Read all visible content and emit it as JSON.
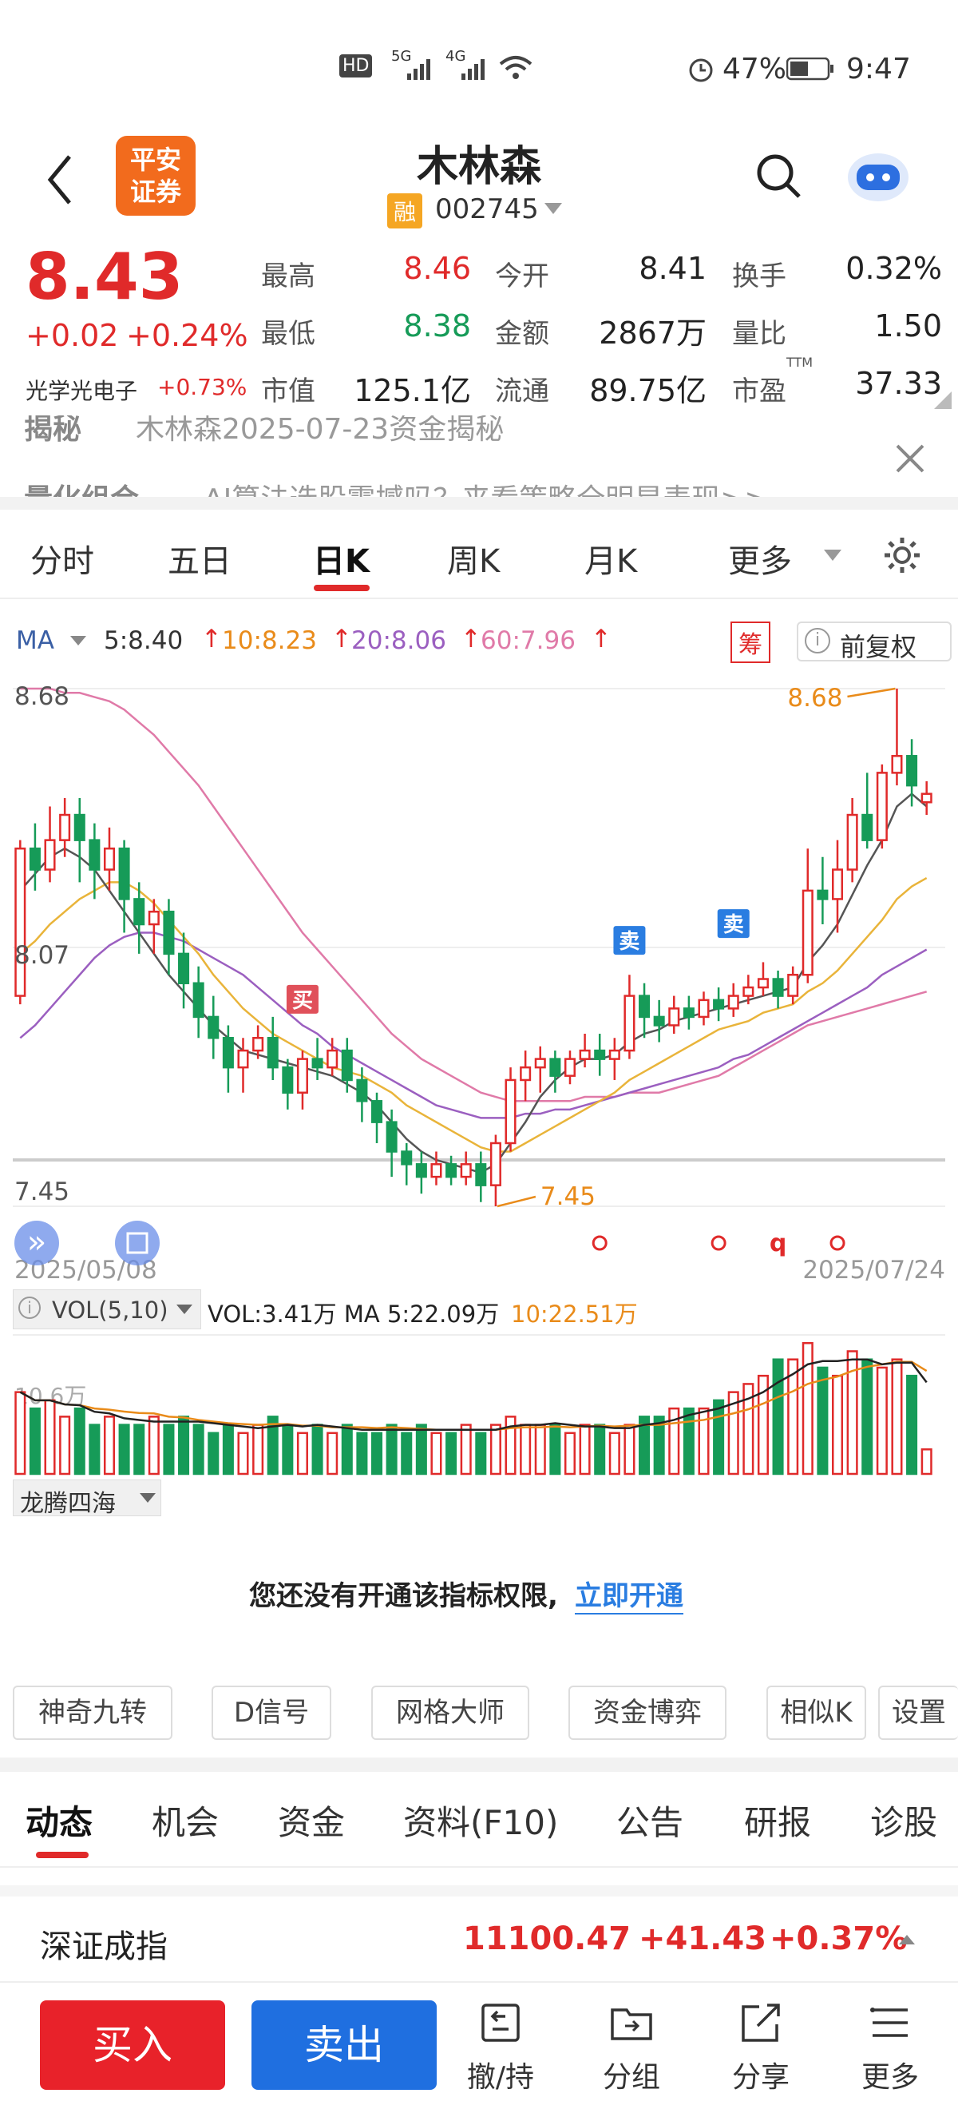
{
  "status_bar": {
    "battery": "47%",
    "time": "9:47",
    "net1": "5G",
    "net2": "4G",
    "hd": "HD"
  },
  "header": {
    "logo_line1": "平安",
    "logo_line2": "证券",
    "title": "木林森",
    "margin_badge": "融",
    "code": "002745"
  },
  "quote": {
    "price": "8.43",
    "change": "+0.02",
    "change_pct": "+0.24%",
    "sector": "光学光电子",
    "sector_pct": "+0.73%",
    "rows": [
      [
        {
          "l": "最高",
          "v": "8.46",
          "c": "red"
        },
        {
          "l": "今开",
          "v": "8.41",
          "c": "dark"
        },
        {
          "l": "换手",
          "v": "0.32%",
          "c": "dark"
        }
      ],
      [
        {
          "l": "最低",
          "v": "8.38",
          "c": "green"
        },
        {
          "l": "金额",
          "v": "2867万",
          "c": "dark"
        },
        {
          "l": "量比",
          "v": "1.50",
          "c": "dark"
        }
      ],
      [
        {
          "l": "市值",
          "v": "125.1亿",
          "c": "dark"
        },
        {
          "l": "流通",
          "v": "89.75亿",
          "c": "dark"
        },
        {
          "l": "市盈",
          "v": "37.33",
          "c": "dark",
          "sup": "TTM"
        }
      ]
    ]
  },
  "news": {
    "line1_tag": "揭秘",
    "line1_text": "木林森2025-07-23资金揭秘",
    "line2_tag": "量化组合",
    "line2_text": "AI算法选股震撼吗？来看策略全明星表现>>"
  },
  "tabs": [
    "分时",
    "五日",
    "日K",
    "周K",
    "月K",
    "更多"
  ],
  "ma": {
    "label": "MA",
    "ma5": "5:8.40",
    "ma10": "10:8.23",
    "ma20": "20:8.06",
    "ma60": "60:7.96",
    "chip": "筹",
    "adjust": "前复权"
  },
  "kline": {
    "y_top": "8.68",
    "y_mid": "8.07",
    "y_bot": "7.45",
    "date_start": "2025/05/08",
    "date_end": "2025/07/24",
    "hi_label": "8.68",
    "lo_label": "7.45",
    "buy": "买",
    "sell": "卖",
    "q": "q"
  },
  "vol": {
    "label": "VOL(5,10)",
    "text": "VOL:3.41万 MA 5:22.09万",
    "ma10": "10:22.51万",
    "left_label": "10.6万"
  },
  "indicator": {
    "name": "龙腾四海",
    "notice": "您还没有开通该指标权限,",
    "link": "立即开通"
  },
  "tools": [
    "神奇九转",
    "D信号",
    "网格大师",
    "资金博弈",
    "相似K",
    "设置"
  ],
  "feature_tabs": [
    "动态",
    "机会",
    "资金",
    "资料(F10)",
    "公告",
    "研报",
    "诊股"
  ],
  "index": {
    "name": "深证成指",
    "value": "11100.47",
    "change": "+41.43",
    "pct": "+0.37%"
  },
  "bottom": {
    "buy": "买入",
    "sell": "卖出",
    "items": [
      "撤/持",
      "分组",
      "分享",
      "更多"
    ]
  },
  "chart_data": {
    "type": "candlestick",
    "ylim": [
      7.45,
      8.68
    ],
    "date_range": [
      "2025/05/08",
      "2025/07/24"
    ],
    "candles": [
      [
        7.95,
        8.3,
        8.32,
        7.93
      ],
      [
        8.3,
        8.25,
        8.36,
        8.2
      ],
      [
        8.25,
        8.32,
        8.4,
        8.22
      ],
      [
        8.32,
        8.38,
        8.42,
        8.28
      ],
      [
        8.38,
        8.32,
        8.42,
        8.22
      ],
      [
        8.32,
        8.25,
        8.36,
        8.18
      ],
      [
        8.25,
        8.3,
        8.35,
        8.2
      ],
      [
        8.3,
        8.18,
        8.32,
        8.1
      ],
      [
        8.18,
        8.12,
        8.22,
        8.05
      ],
      [
        8.12,
        8.15,
        8.18,
        8.05
      ],
      [
        8.15,
        8.05,
        8.18,
        8.0
      ],
      [
        8.05,
        7.98,
        8.1,
        7.92
      ],
      [
        7.98,
        7.9,
        8.02,
        7.85
      ],
      [
        7.9,
        7.85,
        7.95,
        7.8
      ],
      [
        7.85,
        7.78,
        7.88,
        7.72
      ],
      [
        7.78,
        7.82,
        7.85,
        7.72
      ],
      [
        7.82,
        7.85,
        7.88,
        7.8
      ],
      [
        7.85,
        7.78,
        7.9,
        7.75
      ],
      [
        7.78,
        7.72,
        7.8,
        7.68
      ],
      [
        7.72,
        7.8,
        7.82,
        7.68
      ],
      [
        7.8,
        7.78,
        7.85,
        7.75
      ],
      [
        7.78,
        7.82,
        7.85,
        7.76
      ],
      [
        7.82,
        7.75,
        7.85,
        7.72
      ],
      [
        7.75,
        7.7,
        7.78,
        7.65
      ],
      [
        7.7,
        7.65,
        7.72,
        7.6
      ],
      [
        7.65,
        7.58,
        7.68,
        7.52
      ],
      [
        7.58,
        7.55,
        7.6,
        7.5
      ],
      [
        7.55,
        7.52,
        7.58,
        7.48
      ],
      [
        7.52,
        7.55,
        7.58,
        7.5
      ],
      [
        7.55,
        7.52,
        7.57,
        7.5
      ],
      [
        7.52,
        7.55,
        7.58,
        7.5
      ],
      [
        7.55,
        7.5,
        7.58,
        7.46
      ],
      [
        7.5,
        7.6,
        7.62,
        7.45
      ],
      [
        7.6,
        7.75,
        7.78,
        7.58
      ],
      [
        7.75,
        7.78,
        7.82,
        7.7
      ],
      [
        7.78,
        7.8,
        7.83,
        7.72
      ],
      [
        7.8,
        7.76,
        7.82,
        7.72
      ],
      [
        7.76,
        7.8,
        7.82,
        7.74
      ],
      [
        7.8,
        7.82,
        7.86,
        7.78
      ],
      [
        7.82,
        7.8,
        7.86,
        7.76
      ],
      [
        7.8,
        7.82,
        7.85,
        7.75
      ],
      [
        7.82,
        7.95,
        8.0,
        7.8
      ],
      [
        7.95,
        7.9,
        7.98,
        7.85
      ],
      [
        7.9,
        7.88,
        7.94,
        7.84
      ],
      [
        7.88,
        7.92,
        7.95,
        7.86
      ],
      [
        7.92,
        7.9,
        7.95,
        7.87
      ],
      [
        7.9,
        7.94,
        7.96,
        7.88
      ],
      [
        7.94,
        7.92,
        7.97,
        7.89
      ],
      [
        7.92,
        7.95,
        7.98,
        7.9
      ],
      [
        7.95,
        7.97,
        8.0,
        7.93
      ],
      [
        7.97,
        7.99,
        8.03,
        7.95
      ],
      [
        7.99,
        7.95,
        8.01,
        7.92
      ],
      [
        7.95,
        8.0,
        8.02,
        7.93
      ],
      [
        8.0,
        8.2,
        8.3,
        7.98
      ],
      [
        8.2,
        8.18,
        8.28,
        8.12
      ],
      [
        8.18,
        8.25,
        8.32,
        8.1
      ],
      [
        8.25,
        8.38,
        8.42,
        8.22
      ],
      [
        8.38,
        8.32,
        8.48,
        8.3
      ],
      [
        8.32,
        8.48,
        8.5,
        8.3
      ],
      [
        8.48,
        8.52,
        8.68,
        8.45
      ],
      [
        8.52,
        8.45,
        8.56,
        8.4
      ],
      [
        8.41,
        8.43,
        8.46,
        8.38
      ]
    ],
    "volumes": [
      10,
      8,
      9,
      7,
      8,
      6,
      7,
      6,
      6,
      7,
      6,
      7,
      6,
      5,
      6,
      5,
      6,
      7,
      6,
      5,
      6,
      5,
      6,
      5,
      5,
      6,
      5,
      6,
      5,
      5,
      6,
      5,
      6,
      7,
      6,
      6,
      6,
      5,
      6,
      6,
      5,
      6,
      7,
      7,
      8,
      8,
      8,
      9,
      10,
      11,
      12,
      14,
      14,
      16,
      13,
      12,
      15,
      14,
      13,
      14,
      12,
      3
    ],
    "ma5": [
      8.2,
      8.24,
      8.28,
      8.3,
      8.28,
      8.25,
      8.2,
      8.15,
      8.1,
      8.05,
      8.0,
      7.96,
      7.92,
      7.88,
      7.85,
      7.82,
      7.81,
      7.8,
      7.79,
      7.78,
      7.77,
      7.76,
      7.74,
      7.72,
      7.69,
      7.65,
      7.61,
      7.58,
      7.56,
      7.55,
      7.54,
      7.53,
      7.55,
      7.6,
      7.65,
      7.71,
      7.75,
      7.78,
      7.8,
      7.8,
      7.81,
      7.84,
      7.86,
      7.87,
      7.89,
      7.9,
      7.91,
      7.92,
      7.93,
      7.94,
      7.95,
      7.96,
      7.97,
      8.03,
      8.07,
      8.12,
      8.19,
      8.26,
      8.32,
      8.4,
      8.43,
      8.4
    ],
    "ma10": [
      8.05,
      8.08,
      8.12,
      8.15,
      8.18,
      8.2,
      8.22,
      8.22,
      8.2,
      8.17,
      8.13,
      8.09,
      8.05,
      8.0,
      7.96,
      7.92,
      7.89,
      7.86,
      7.84,
      7.82,
      7.8,
      7.78,
      7.77,
      7.76,
      7.74,
      7.72,
      7.69,
      7.67,
      7.65,
      7.63,
      7.61,
      7.59,
      7.58,
      7.58,
      7.6,
      7.62,
      7.64,
      7.66,
      7.68,
      7.7,
      7.72,
      7.75,
      7.77,
      7.79,
      7.81,
      7.83,
      7.85,
      7.87,
      7.88,
      7.89,
      7.91,
      7.92,
      7.93,
      7.96,
      7.98,
      8.01,
      8.05,
      8.09,
      8.13,
      8.18,
      8.21,
      8.23
    ],
    "ma20": [
      7.85,
      7.88,
      7.92,
      7.96,
      8.0,
      8.04,
      8.07,
      8.09,
      8.1,
      8.1,
      8.09,
      8.08,
      8.06,
      8.04,
      8.02,
      8.0,
      7.97,
      7.94,
      7.91,
      7.88,
      7.86,
      7.83,
      7.81,
      7.79,
      7.77,
      7.75,
      7.73,
      7.71,
      7.69,
      7.68,
      7.67,
      7.66,
      7.66,
      7.66,
      7.67,
      7.67,
      7.68,
      7.68,
      7.69,
      7.7,
      7.71,
      7.72,
      7.73,
      7.74,
      7.75,
      7.76,
      7.77,
      7.78,
      7.8,
      7.81,
      7.83,
      7.85,
      7.87,
      7.89,
      7.91,
      7.93,
      7.95,
      7.97,
      8.0,
      8.02,
      8.04,
      8.06
    ],
    "ma60": [
      8.68,
      8.68,
      8.68,
      8.67,
      8.67,
      8.66,
      8.65,
      8.63,
      8.6,
      8.57,
      8.53,
      8.49,
      8.45,
      8.4,
      8.35,
      8.3,
      8.25,
      8.2,
      8.15,
      8.1,
      8.06,
      8.02,
      7.98,
      7.94,
      7.9,
      7.86,
      7.83,
      7.8,
      7.78,
      7.76,
      7.74,
      7.72,
      7.71,
      7.7,
      7.7,
      7.7,
      7.7,
      7.7,
      7.71,
      7.71,
      7.71,
      7.72,
      7.72,
      7.72,
      7.73,
      7.74,
      7.75,
      7.76,
      7.78,
      7.8,
      7.82,
      7.84,
      7.86,
      7.88,
      7.89,
      7.9,
      7.91,
      7.92,
      7.93,
      7.94,
      7.95,
      7.96
    ]
  }
}
